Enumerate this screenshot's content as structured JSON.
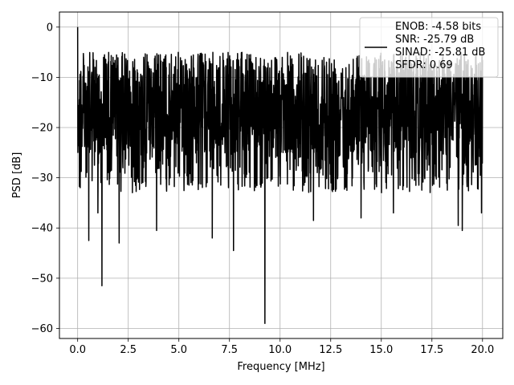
{
  "chart_data": {
    "type": "line",
    "xlabel": "Frequency [MHz]",
    "ylabel": "PSD [dB]",
    "xlim": [
      -0.9,
      21.0
    ],
    "ylim": [
      -62.0,
      3.0
    ],
    "xticks": [
      0.0,
      2.5,
      5.0,
      7.5,
      10.0,
      12.5,
      15.0,
      17.5,
      20.0
    ],
    "xtick_labels": [
      "0.0",
      "2.5",
      "5.0",
      "7.5",
      "10.0",
      "12.5",
      "15.0",
      "17.5",
      "20.0"
    ],
    "yticks": [
      0,
      -10,
      -20,
      -30,
      -40,
      -50,
      -60
    ],
    "ytick_labels": [
      "0",
      "−10",
      "−20",
      "−30",
      "−40",
      "−50",
      "−60"
    ],
    "grid": true,
    "legend_position": "top-right",
    "series_color": "#000000",
    "noise_floor_db": [
      -30,
      -5
    ],
    "peak": {
      "x": 0.0,
      "y": 0.0
    },
    "dips": [
      {
        "x": 0.55,
        "y": -42.5
      },
      {
        "x": 1.2,
        "y": -51.5
      },
      {
        "x": 2.05,
        "y": -43.0
      },
      {
        "x": 3.9,
        "y": -40.5
      },
      {
        "x": 6.65,
        "y": -42.0
      },
      {
        "x": 7.7,
        "y": -44.5
      },
      {
        "x": 9.25,
        "y": -59.0
      },
      {
        "x": 11.65,
        "y": -38.5
      },
      {
        "x": 14.0,
        "y": -38.0
      },
      {
        "x": 15.6,
        "y": -37.0
      },
      {
        "x": 18.8,
        "y": -39.5
      },
      {
        "x": 19.0,
        "y": -40.5
      },
      {
        "x": 1.0,
        "y": -37.0
      },
      {
        "x": 19.95,
        "y": -37.0
      }
    ],
    "series": [
      {
        "legend": [
          "ENOB: -4.58 bits",
          "SNR: -25.79 dB",
          "SINAD: -25.81 dB",
          "SFDR: 0.69"
        ]
      }
    ]
  }
}
